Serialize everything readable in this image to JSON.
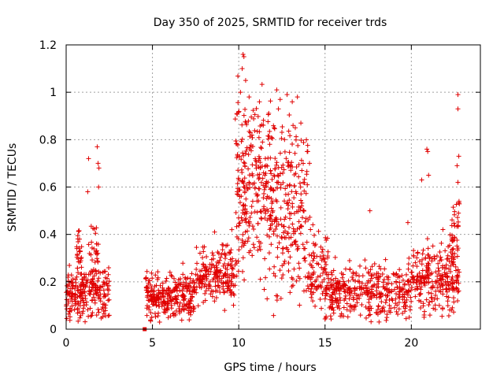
{
  "chart_data": {
    "type": "scatter",
    "title": "Day 350 of 2025, SRMTID for receiver trds",
    "xlabel": "GPS time / hours",
    "ylabel": "SRMTID / TECUs",
    "xlim": [
      0,
      24
    ],
    "ylim": [
      0,
      1.2
    ],
    "x_ticks": [
      0,
      5,
      10,
      15,
      20
    ],
    "y_ticks": [
      0,
      0.2,
      0.4,
      0.6,
      0.8,
      1,
      1.2
    ],
    "x_tick_labels": [
      "0",
      "5",
      "10",
      "15",
      "20"
    ],
    "y_tick_labels": [
      "0",
      "0.2",
      "0.4",
      "0.6",
      "0.8",
      "1",
      "1.2"
    ],
    "grid": true,
    "marker_color": "#e00000",
    "series": [
      {
        "name": "SRMTID",
        "marker": "plus",
        "segments": [
          {
            "x0": 0.0,
            "x1": 2.5,
            "base": 0.15,
            "spread": 0.1,
            "n": 230
          },
          {
            "x0": 0.6,
            "x1": 0.9,
            "base": 0.32,
            "spread": 0.1,
            "n": 25
          },
          {
            "x0": 1.3,
            "x1": 1.9,
            "base": 0.3,
            "spread": 0.15,
            "n": 35
          },
          {
            "x0": 4.6,
            "x1": 7.5,
            "base": 0.14,
            "spread": 0.08,
            "n": 280
          },
          {
            "x0": 7.5,
            "x1": 9.8,
            "base": 0.22,
            "spread": 0.1,
            "n": 200
          },
          {
            "x0": 9.8,
            "x1": 12.0,
            "base": 0.6,
            "spread": 0.3,
            "n": 280
          },
          {
            "x0": 12.0,
            "x1": 14.0,
            "base": 0.5,
            "spread": 0.3,
            "n": 220
          },
          {
            "x0": 14.0,
            "x1": 15.2,
            "base": 0.25,
            "spread": 0.15,
            "n": 90
          },
          {
            "x0": 15.0,
            "x1": 20.0,
            "base": 0.16,
            "spread": 0.09,
            "n": 380
          },
          {
            "x0": 20.0,
            "x1": 22.8,
            "base": 0.22,
            "spread": 0.12,
            "n": 260
          },
          {
            "x0": 22.3,
            "x1": 22.8,
            "base": 0.45,
            "spread": 0.15,
            "n": 30
          }
        ],
        "outliers": [
          {
            "x": 10.25,
            "y": 1.16
          },
          {
            "x": 10.3,
            "y": 1.15
          },
          {
            "x": 10.2,
            "y": 1.1
          },
          {
            "x": 10.4,
            "y": 1.05
          },
          {
            "x": 10.1,
            "y": 1.0
          },
          {
            "x": 10.6,
            "y": 0.98
          },
          {
            "x": 11.2,
            "y": 0.96
          },
          {
            "x": 12.2,
            "y": 1.01
          },
          {
            "x": 12.4,
            "y": 0.97
          },
          {
            "x": 12.8,
            "y": 0.99
          },
          {
            "x": 13.1,
            "y": 0.96
          },
          {
            "x": 13.4,
            "y": 0.98
          },
          {
            "x": 12.3,
            "y": 0.93
          },
          {
            "x": 13.6,
            "y": 0.87
          },
          {
            "x": 1.3,
            "y": 0.72
          },
          {
            "x": 1.8,
            "y": 0.77
          },
          {
            "x": 1.85,
            "y": 0.7
          },
          {
            "x": 1.9,
            "y": 0.68
          },
          {
            "x": 1.88,
            "y": 0.6
          },
          {
            "x": 1.25,
            "y": 0.58
          },
          {
            "x": 20.9,
            "y": 0.76
          },
          {
            "x": 20.95,
            "y": 0.75
          },
          {
            "x": 20.6,
            "y": 0.63
          },
          {
            "x": 21.0,
            "y": 0.65
          },
          {
            "x": 22.7,
            "y": 0.99
          },
          {
            "x": 22.7,
            "y": 0.93
          },
          {
            "x": 22.75,
            "y": 0.73
          },
          {
            "x": 22.65,
            "y": 0.69
          },
          {
            "x": 22.7,
            "y": 0.62
          },
          {
            "x": 19.8,
            "y": 0.45
          },
          {
            "x": 17.6,
            "y": 0.5
          },
          {
            "x": 14.1,
            "y": 0.7
          },
          {
            "x": 14.0,
            "y": 0.75
          },
          {
            "x": 9.6,
            "y": 0.42
          },
          {
            "x": 8.6,
            "y": 0.41
          }
        ],
        "square_markers": [
          {
            "x": 4.55,
            "y": 0.0
          }
        ]
      }
    ]
  }
}
